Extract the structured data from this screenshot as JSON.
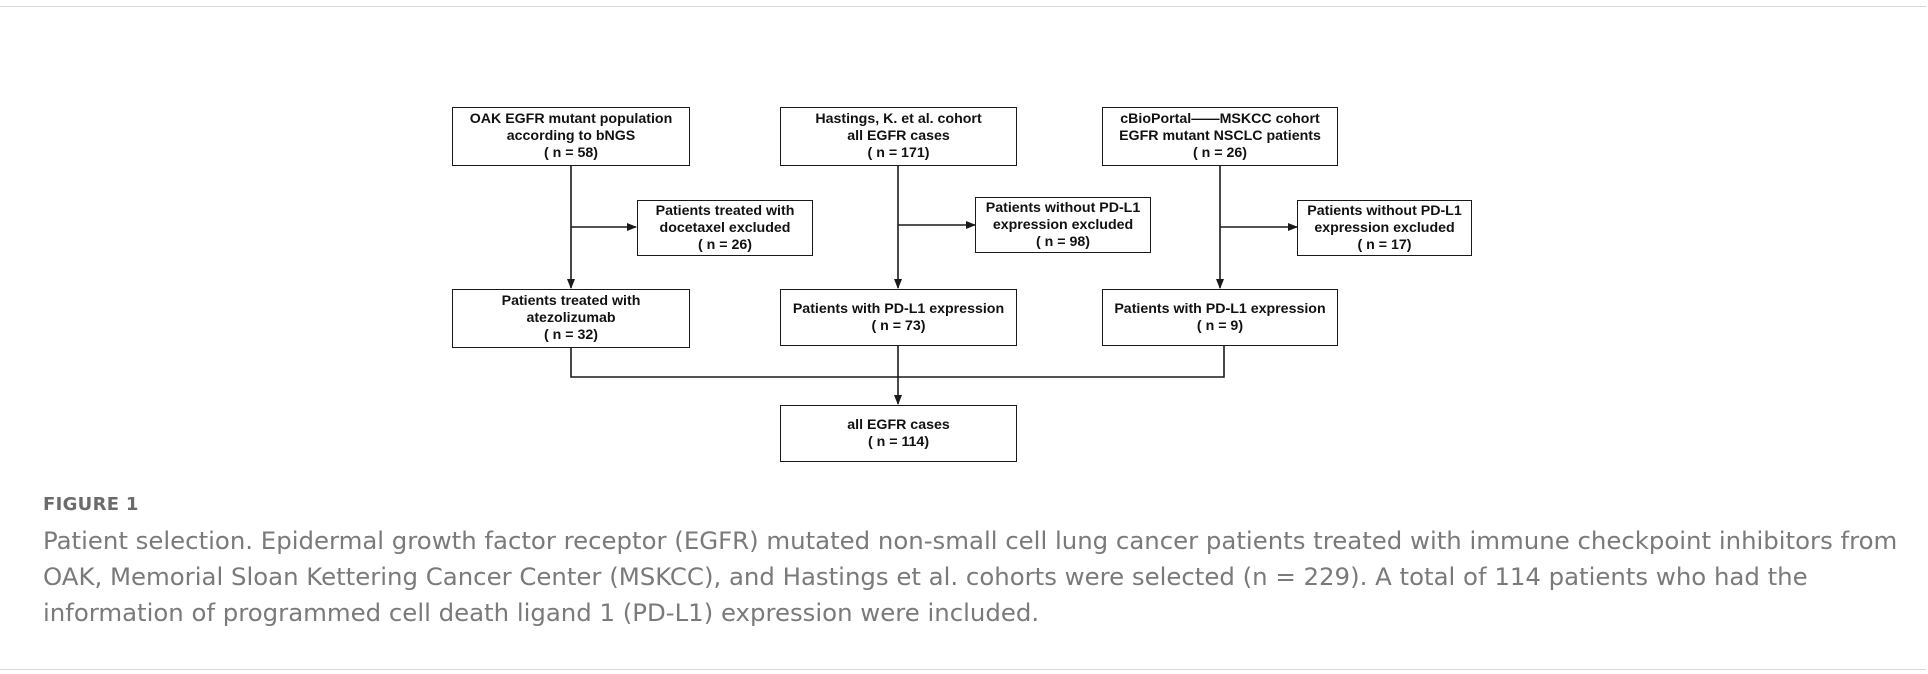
{
  "boxes": {
    "oak_top": [
      "OAK EGFR mutant population",
      "according to bNGS",
      "( n = 58)"
    ],
    "oak_excl": [
      "Patients treated with",
      "docetaxel excluded",
      "( n = 26)"
    ],
    "oak_bottom": [
      "Patients treated with",
      "atezolizumab",
      "( n = 32)"
    ],
    "hast_top": [
      "Hastings, K. et al. cohort",
      "all EGFR cases",
      "( n = 171)"
    ],
    "hast_excl": [
      "Patients without PD-L1",
      "expression excluded",
      "( n = 98)"
    ],
    "hast_bottom": [
      "Patients with PD-L1 expression",
      "( n = 73)"
    ],
    "mskcc_top": [
      "cBioPortal——MSKCC cohort",
      "EGFR mutant NSCLC patients",
      "( n = 26)"
    ],
    "mskcc_excl": [
      "Patients without PD-L1",
      "expression excluded",
      "( n = 17)"
    ],
    "mskcc_bottom": [
      "Patients with PD-L1 expression",
      "( n = 9)"
    ],
    "final": [
      "all EGFR cases",
      "( n = 114)"
    ]
  },
  "figure_label": "FIGURE 1",
  "caption": "Patient selection. Epidermal growth factor receptor (EGFR) mutated non-small cell lung cancer patients treated with immune checkpoint inhibitors from OAK, Memorial Sloan Kettering Cancer Center (MSKCC), and Hastings et al. cohorts were selected (n = 229). A total of 114 patients who had the information of programmed cell death ligand 1 (PD-L1) expression were included."
}
